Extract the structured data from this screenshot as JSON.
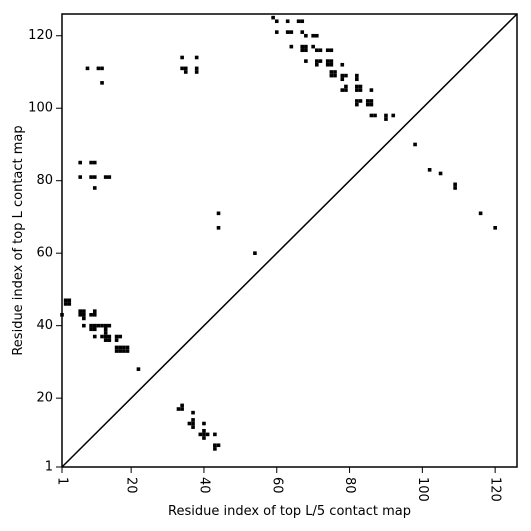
{
  "chart_data": {
    "type": "scatter",
    "title": "",
    "xlabel": "Residue index of top L/5 contact map",
    "ylabel": "Residue index of top L contact map",
    "xlim": [
      1,
      126
    ],
    "ylim": [
      1,
      126
    ],
    "xticks": [
      1,
      20,
      40,
      60,
      80,
      100,
      120
    ],
    "yticks": [
      1,
      20,
      40,
      60,
      80,
      100,
      120
    ],
    "xtick_rotation": -90,
    "grid": false,
    "legend": "none",
    "diagonal_line": {
      "from": [
        1,
        1
      ],
      "to": [
        126,
        126
      ]
    },
    "colors": {
      "points": "#000000",
      "axes": "#000000",
      "background": "#ffffff"
    },
    "series": [
      {
        "region": "below_diagonal",
        "points": [
          [
            3,
            47
          ],
          [
            3,
            46
          ],
          [
            2,
            47
          ],
          [
            2,
            46
          ],
          [
            1,
            43
          ],
          [
            6,
            44
          ],
          [
            6,
            43
          ],
          [
            7,
            44
          ],
          [
            7,
            43
          ],
          [
            7,
            42
          ],
          [
            7,
            40
          ],
          [
            9,
            43
          ],
          [
            10,
            44
          ],
          [
            10,
            43
          ],
          [
            9,
            40
          ],
          [
            9,
            39
          ],
          [
            10,
            40
          ],
          [
            10,
            39
          ],
          [
            10,
            37
          ],
          [
            11,
            40
          ],
          [
            12,
            40
          ],
          [
            13,
            40
          ],
          [
            14,
            40
          ],
          [
            13,
            39
          ],
          [
            13,
            38
          ],
          [
            12,
            37
          ],
          [
            13,
            37
          ],
          [
            14,
            37
          ],
          [
            13,
            36
          ],
          [
            14,
            36
          ],
          [
            16,
            37
          ],
          [
            17,
            37
          ],
          [
            16,
            36
          ],
          [
            16,
            34
          ],
          [
            17,
            34
          ],
          [
            18,
            34
          ],
          [
            19,
            34
          ],
          [
            16,
            33
          ],
          [
            17,
            33
          ],
          [
            18,
            33
          ],
          [
            19,
            33
          ],
          [
            22,
            28
          ],
          [
            33,
            17
          ],
          [
            34,
            18
          ],
          [
            34,
            17
          ],
          [
            37,
            16
          ],
          [
            36,
            13
          ],
          [
            37,
            13
          ],
          [
            37,
            12
          ],
          [
            37,
            14
          ],
          [
            39,
            10
          ],
          [
            40,
            10
          ],
          [
            41,
            10
          ],
          [
            40,
            11
          ],
          [
            40,
            9
          ],
          [
            40,
            13
          ],
          [
            43,
            10
          ],
          [
            43,
            7
          ],
          [
            44,
            7
          ],
          [
            43,
            6
          ]
        ]
      },
      {
        "region": "above_diagonal",
        "points": [
          [
            6,
            85
          ],
          [
            9,
            85
          ],
          [
            10,
            85
          ],
          [
            6,
            81
          ],
          [
            9,
            81
          ],
          [
            10,
            81
          ],
          [
            13,
            81
          ],
          [
            14,
            81
          ],
          [
            10,
            78
          ],
          [
            8,
            111
          ],
          [
            11,
            111
          ],
          [
            12,
            111
          ],
          [
            12,
            107
          ],
          [
            34,
            114
          ],
          [
            34,
            111
          ],
          [
            35,
            111
          ],
          [
            35,
            110
          ],
          [
            38,
            114
          ],
          [
            38,
            111
          ],
          [
            38,
            110
          ],
          [
            44,
            71
          ],
          [
            44,
            67
          ],
          [
            54,
            60
          ],
          [
            59,
            125
          ],
          [
            60,
            124
          ],
          [
            60,
            121
          ],
          [
            63,
            124
          ],
          [
            63,
            121
          ],
          [
            64,
            121
          ],
          [
            64,
            117
          ],
          [
            66,
            124
          ],
          [
            67,
            124
          ],
          [
            67,
            121
          ],
          [
            68,
            120
          ],
          [
            67,
            117
          ],
          [
            68,
            117
          ],
          [
            67,
            116
          ],
          [
            68,
            116
          ],
          [
            68,
            113
          ],
          [
            70,
            120
          ],
          [
            71,
            120
          ],
          [
            70,
            117
          ],
          [
            71,
            116
          ],
          [
            72,
            116
          ],
          [
            71,
            113
          ],
          [
            72,
            113
          ],
          [
            71,
            112
          ],
          [
            74,
            116
          ],
          [
            75,
            116
          ],
          [
            74,
            113
          ],
          [
            75,
            113
          ],
          [
            74,
            112
          ],
          [
            75,
            112
          ],
          [
            75,
            110
          ],
          [
            76,
            110
          ],
          [
            75,
            109
          ],
          [
            76,
            109
          ],
          [
            78,
            112
          ],
          [
            78,
            109
          ],
          [
            79,
            109
          ],
          [
            78,
            108
          ],
          [
            78,
            105
          ],
          [
            79,
            105
          ],
          [
            79,
            106
          ],
          [
            82,
            109
          ],
          [
            82,
            108
          ],
          [
            82,
            106
          ],
          [
            83,
            106
          ],
          [
            82,
            105
          ],
          [
            83,
            105
          ],
          [
            82,
            102
          ],
          [
            83,
            102
          ],
          [
            82,
            101
          ],
          [
            85,
            102
          ],
          [
            86,
            102
          ],
          [
            85,
            101
          ],
          [
            86,
            101
          ],
          [
            86,
            105
          ],
          [
            86,
            98
          ],
          [
            87,
            98
          ],
          [
            90,
            98
          ],
          [
            90,
            97
          ],
          [
            92,
            98
          ],
          [
            98,
            90
          ],
          [
            102,
            83
          ],
          [
            105,
            82
          ],
          [
            109,
            79
          ],
          [
            109,
            78
          ],
          [
            116,
            71
          ],
          [
            120,
            67
          ]
        ]
      }
    ]
  }
}
